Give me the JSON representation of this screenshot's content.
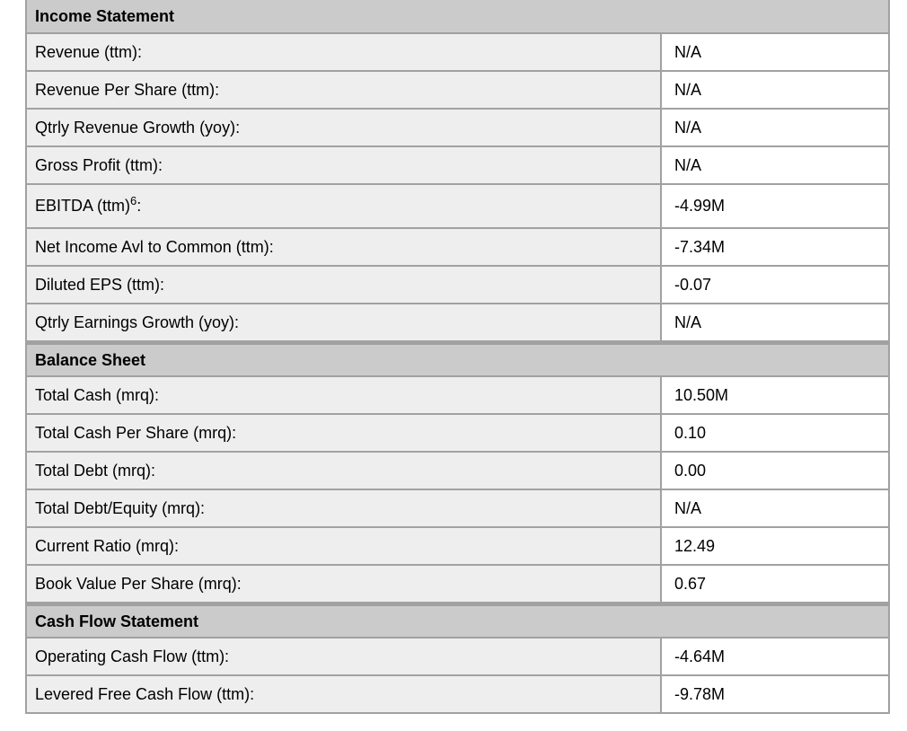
{
  "table": {
    "colors": {
      "section_header_bg": "#cbcbcb",
      "label_cell_bg": "#eeeeee",
      "value_cell_bg": "#ffffff",
      "grid_border": "#a1a1a1",
      "text": "#000000"
    },
    "sections": [
      {
        "header": "Income Statement",
        "rows": [
          {
            "label": "Revenue (ttm):",
            "value": "N/A"
          },
          {
            "label": "Revenue Per Share (ttm):",
            "value": "N/A"
          },
          {
            "label": "Qtrly Revenue Growth (yoy):",
            "value": "N/A"
          },
          {
            "label": "Gross Profit (ttm):",
            "value": "N/A"
          },
          {
            "label": "EBITDA (ttm)",
            "sup": "6",
            "suffix": ":",
            "value": "-4.99M"
          },
          {
            "label": "Net Income Avl to Common (ttm):",
            "value": "-7.34M"
          },
          {
            "label": "Diluted EPS (ttm):",
            "value": "-0.07"
          },
          {
            "label": "Qtrly Earnings Growth (yoy):",
            "value": "N/A"
          }
        ]
      },
      {
        "header": "Balance Sheet",
        "rows": [
          {
            "label": "Total Cash (mrq):",
            "value": "10.50M"
          },
          {
            "label": "Total Cash Per Share (mrq):",
            "value": "0.10"
          },
          {
            "label": "Total Debt (mrq):",
            "value": "0.00"
          },
          {
            "label": "Total Debt/Equity (mrq):",
            "value": "N/A"
          },
          {
            "label": "Current Ratio (mrq):",
            "value": "12.49"
          },
          {
            "label": "Book Value Per Share (mrq):",
            "value": "0.67"
          }
        ]
      },
      {
        "header": "Cash Flow Statement",
        "rows": [
          {
            "label": "Operating Cash Flow (ttm):",
            "value": "-4.64M"
          },
          {
            "label": "Levered Free Cash Flow (ttm):",
            "value": "-9.78M"
          }
        ]
      }
    ]
  }
}
